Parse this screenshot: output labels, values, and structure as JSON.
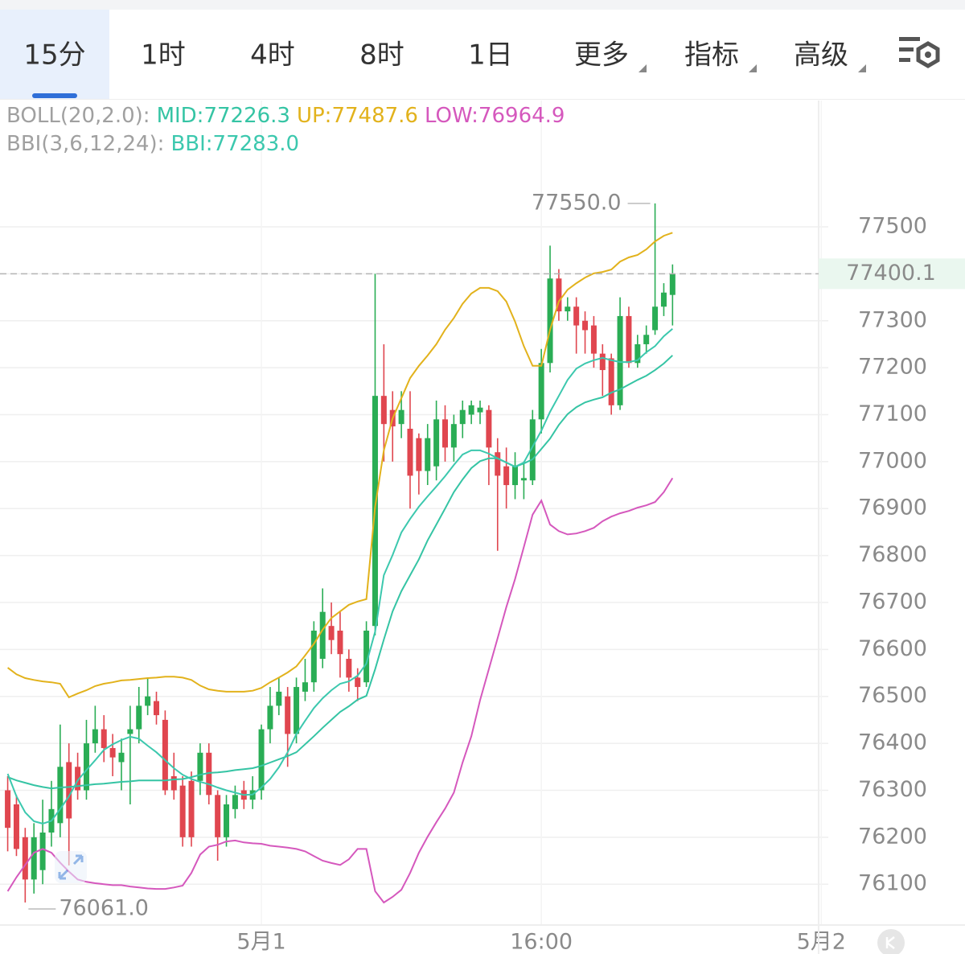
{
  "tabs": [
    "15分",
    "1时",
    "4时",
    "8时",
    "1日",
    "更多",
    "指标",
    "高级"
  ],
  "active_tab": "15分",
  "menu_tabs": [
    "更多",
    "指标",
    "高级"
  ],
  "chart_data": {
    "type": "candlestick",
    "up_color": "#2aad55",
    "down_color": "#e0464f",
    "xlim": [
      -0.88,
      92.7
    ],
    "xticks": [
      {
        "value": 29,
        "label": "5月1"
      },
      {
        "value": 61,
        "label": "16:00"
      },
      {
        "value": 93,
        "label": "5月2"
      }
    ],
    "ylim": [
      76013,
      77769
    ],
    "yticks": [
      76100,
      76200,
      76300,
      76400,
      76500,
      76600,
      76700,
      76800,
      76900,
      77000,
      77100,
      77200,
      77300,
      77400,
      77500
    ],
    "grid": true,
    "current_price": 77400.1,
    "high_label": "77550.0",
    "low_label": "76061.0",
    "open": [
      76300,
      76270,
      76200,
      76110,
      76130,
      76210,
      76230,
      76360,
      76350,
      76300,
      76400,
      76430,
      76390,
      76360,
      76420,
      76430,
      76480,
      76490,
      76450,
      76330,
      76310,
      76320,
      76320,
      76380,
      76290,
      76200,
      76260,
      76300,
      76280,
      76300,
      76430,
      76480,
      76500,
      76420,
      76510,
      76530,
      76580,
      76650,
      76640,
      76580,
      76540,
      76530,
      76650,
      77140,
      77110,
      77080,
      77070,
      77050,
      76980,
      76990,
      77090,
      77030,
      77080,
      77100,
      77105,
      77110,
      77020,
      76990,
      76950,
      76960,
      76960,
      77090,
      77210,
      77390,
      77320,
      77330,
      77300,
      77290,
      77230,
      77220,
      77120,
      77310,
      77210,
      77250,
      77280,
      77330,
      77355
    ],
    "high": [
      76330,
      76290,
      76220,
      76230,
      76280,
      76320,
      76440,
      76400,
      76380,
      76450,
      76480,
      76460,
      76420,
      76410,
      76480,
      76520,
      76540,
      76510,
      76470,
      76380,
      76330,
      76340,
      76400,
      76400,
      76300,
      76290,
      76310,
      76320,
      76330,
      76440,
      76520,
      76540,
      76520,
      76540,
      76580,
      76660,
      76730,
      76700,
      76680,
      76600,
      76560,
      76660,
      77400,
      77250,
      77150,
      77150,
      77150,
      77060,
      77080,
      77130,
      77120,
      77100,
      77130,
      77130,
      77130,
      77120,
      77050,
      77030,
      77020,
      77000,
      77110,
      77240,
      77460,
      77410,
      77350,
      77350,
      77320,
      77310,
      77250,
      77230,
      77350,
      77330,
      77270,
      77290,
      77550,
      77380,
      77420
    ],
    "low": [
      76170,
      76160,
      76061,
      76080,
      76100,
      76180,
      76200,
      76140,
      76280,
      76280,
      76380,
      76360,
      76330,
      76300,
      76270,
      76400,
      76460,
      76440,
      76290,
      76280,
      76180,
      76180,
      76290,
      76270,
      76150,
      76180,
      76240,
      76260,
      76260,
      76280,
      76400,
      76460,
      76350,
      76400,
      76490,
      76510,
      76560,
      76590,
      76540,
      76510,
      76490,
      76520,
      76630,
      77000,
      77000,
      77050,
      76900,
      76930,
      76950,
      76960,
      77000,
      77000,
      77050,
      77080,
      77080,
      76950,
      76810,
      76900,
      76920,
      76920,
      76950,
      77060,
      77190,
      77300,
      77300,
      77230,
      77230,
      77200,
      77140,
      77100,
      77110,
      77200,
      77200,
      77230,
      77270,
      77310,
      77290
    ],
    "close": [
      76220,
      76175,
      76110,
      76200,
      76210,
      76260,
      76350,
      76240,
      76300,
      76400,
      76430,
      76390,
      76370,
      76380,
      76430,
      76480,
      76500,
      76460,
      76300,
      76300,
      76200,
      76200,
      76380,
      76290,
      76200,
      76270,
      76290,
      76280,
      76300,
      76430,
      76480,
      76510,
      76420,
      76520,
      76530,
      76640,
      76680,
      76620,
      76590,
      76540,
      76520,
      76640,
      77140,
      77080,
      77075,
      77110,
      76970,
      76980,
      77050,
      77090,
      77030,
      77080,
      77110,
      77120,
      77115,
      77030,
      76970,
      76950,
      76990,
      76965,
      77090,
      77210,
      77390,
      77320,
      77330,
      77290,
      77280,
      77230,
      77195,
      77120,
      77310,
      77210,
      77250,
      77270,
      77330,
      77360,
      77400.1
    ],
    "indicators": [
      {
        "name": "BOLL(20,2.0):",
        "series": [
          {
            "name": "MID:77226.3",
            "color": "#35c4a4",
            "values": [
              76328,
              76321,
              76316,
              76311,
              76307,
              76304,
              76306,
              76307,
              76309,
              76311,
              76313,
              76314,
              76316,
              76318,
              76319,
              76321,
              76321,
              76321,
              76321,
              76323,
              76324,
              76328,
              76333,
              76337,
              76338,
              76340,
              76343,
              76345,
              76347,
              76352,
              76359,
              76366,
              76373,
              76381,
              76398,
              76415,
              76433,
              76450,
              76467,
              76479,
              76493,
              76501,
              76558,
              76621,
              76681,
              76724,
              76758,
              76792,
              76832,
              76866,
              76900,
              76935,
              76962,
              76986,
              77001,
              77007,
              77007,
              76998,
              76989,
              76996,
              77005,
              77027,
              77049,
              77078,
              77101,
              77116,
              77126,
              77132,
              77137,
              77147,
              77154,
              77164,
              77174,
              77183,
              77195,
              77209,
              77226.3
            ]
          },
          {
            "name": "UP:77487.6",
            "color": "#e2b21c",
            "values": [
              76561,
              76547,
              76539,
              76535,
              76532,
              76530,
              76527,
              76498,
              76506,
              76513,
              76522,
              76527,
              76530,
              76534,
              76535,
              76537,
              76539,
              76540,
              76542,
              76542,
              76540,
              76535,
              76523,
              76515,
              76512,
              76510,
              76510,
              76510,
              76512,
              76518,
              76530,
              76540,
              76551,
              76564,
              76587,
              76612,
              76642,
              76667,
              76681,
              76695,
              76702,
              76707,
              76904,
              77024,
              77092,
              77135,
              77178,
              77204,
              77226,
              77250,
              77281,
              77306,
              77336,
              77358,
              77370,
              77370,
              77363,
              77341,
              77298,
              77246,
              77204,
              77204,
              77281,
              77341,
              77366,
              77380,
              77392,
              77401,
              77404,
              77409,
              77426,
              77435,
              77440,
              77452,
              77469,
              77481,
              77487.6
            ]
          },
          {
            "name": "LOW:76964.9",
            "color": "#d558bd",
            "values": [
              76085,
              76115,
              76141,
              76167,
              76175,
              76167,
              76146,
              76127,
              76110,
              76105,
              76102,
              76100,
              76098,
              76098,
              76095,
              76093,
              76091,
              76090,
              76090,
              76093,
              76097,
              76124,
              76163,
              76180,
              76184,
              76191,
              76193,
              76189,
              76187,
              76186,
              76182,
              76180,
              76178,
              76175,
              76170,
              76160,
              76150,
              76145,
              76141,
              76153,
              76175,
              76175,
              76085,
              76061,
              76073,
              76088,
              76124,
              76167,
              76201,
              76232,
              76261,
              76295,
              76359,
              76415,
              76492,
              76558,
              76624,
              76690,
              76750,
              76818,
              76887,
              76917,
              76866,
              76852,
              76845,
              76847,
              76852,
              76859,
              76873,
              76883,
              76890,
              76895,
              76902,
              76907,
              76914,
              76935,
              76964.9
            ]
          }
        ]
      },
      {
        "name": "BBI(3,6,12,24):",
        "series": [
          {
            "name": "BBI:77283.0",
            "color": "#3cc8ae",
            "values": [
              76335,
              76287,
              76253,
              76234,
              76229,
              76235,
              76260,
              76287,
              76321,
              76343,
              76364,
              76386,
              76398,
              76407,
              76414,
              76410,
              76395,
              76381,
              76364,
              76347,
              76333,
              76324,
              76318,
              76313,
              76306,
              76300,
              76295,
              76290,
              76291,
              76306,
              76324,
              76349,
              76381,
              76420,
              76448,
              76475,
              76496,
              76513,
              76527,
              76532,
              76544,
              76570,
              76638,
              76758,
              76801,
              76849,
              76878,
              76904,
              76926,
              76947,
              76969,
              76993,
              77015,
              77024,
              77024,
              77017,
              77007,
              76998,
              76989,
              76998,
              77032,
              77066,
              77106,
              77140,
              77174,
              77198,
              77209,
              77216,
              77221,
              77216,
              77212,
              77212,
              77216,
              77233,
              77246,
              77267,
              77283
            ]
          }
        ]
      }
    ]
  }
}
